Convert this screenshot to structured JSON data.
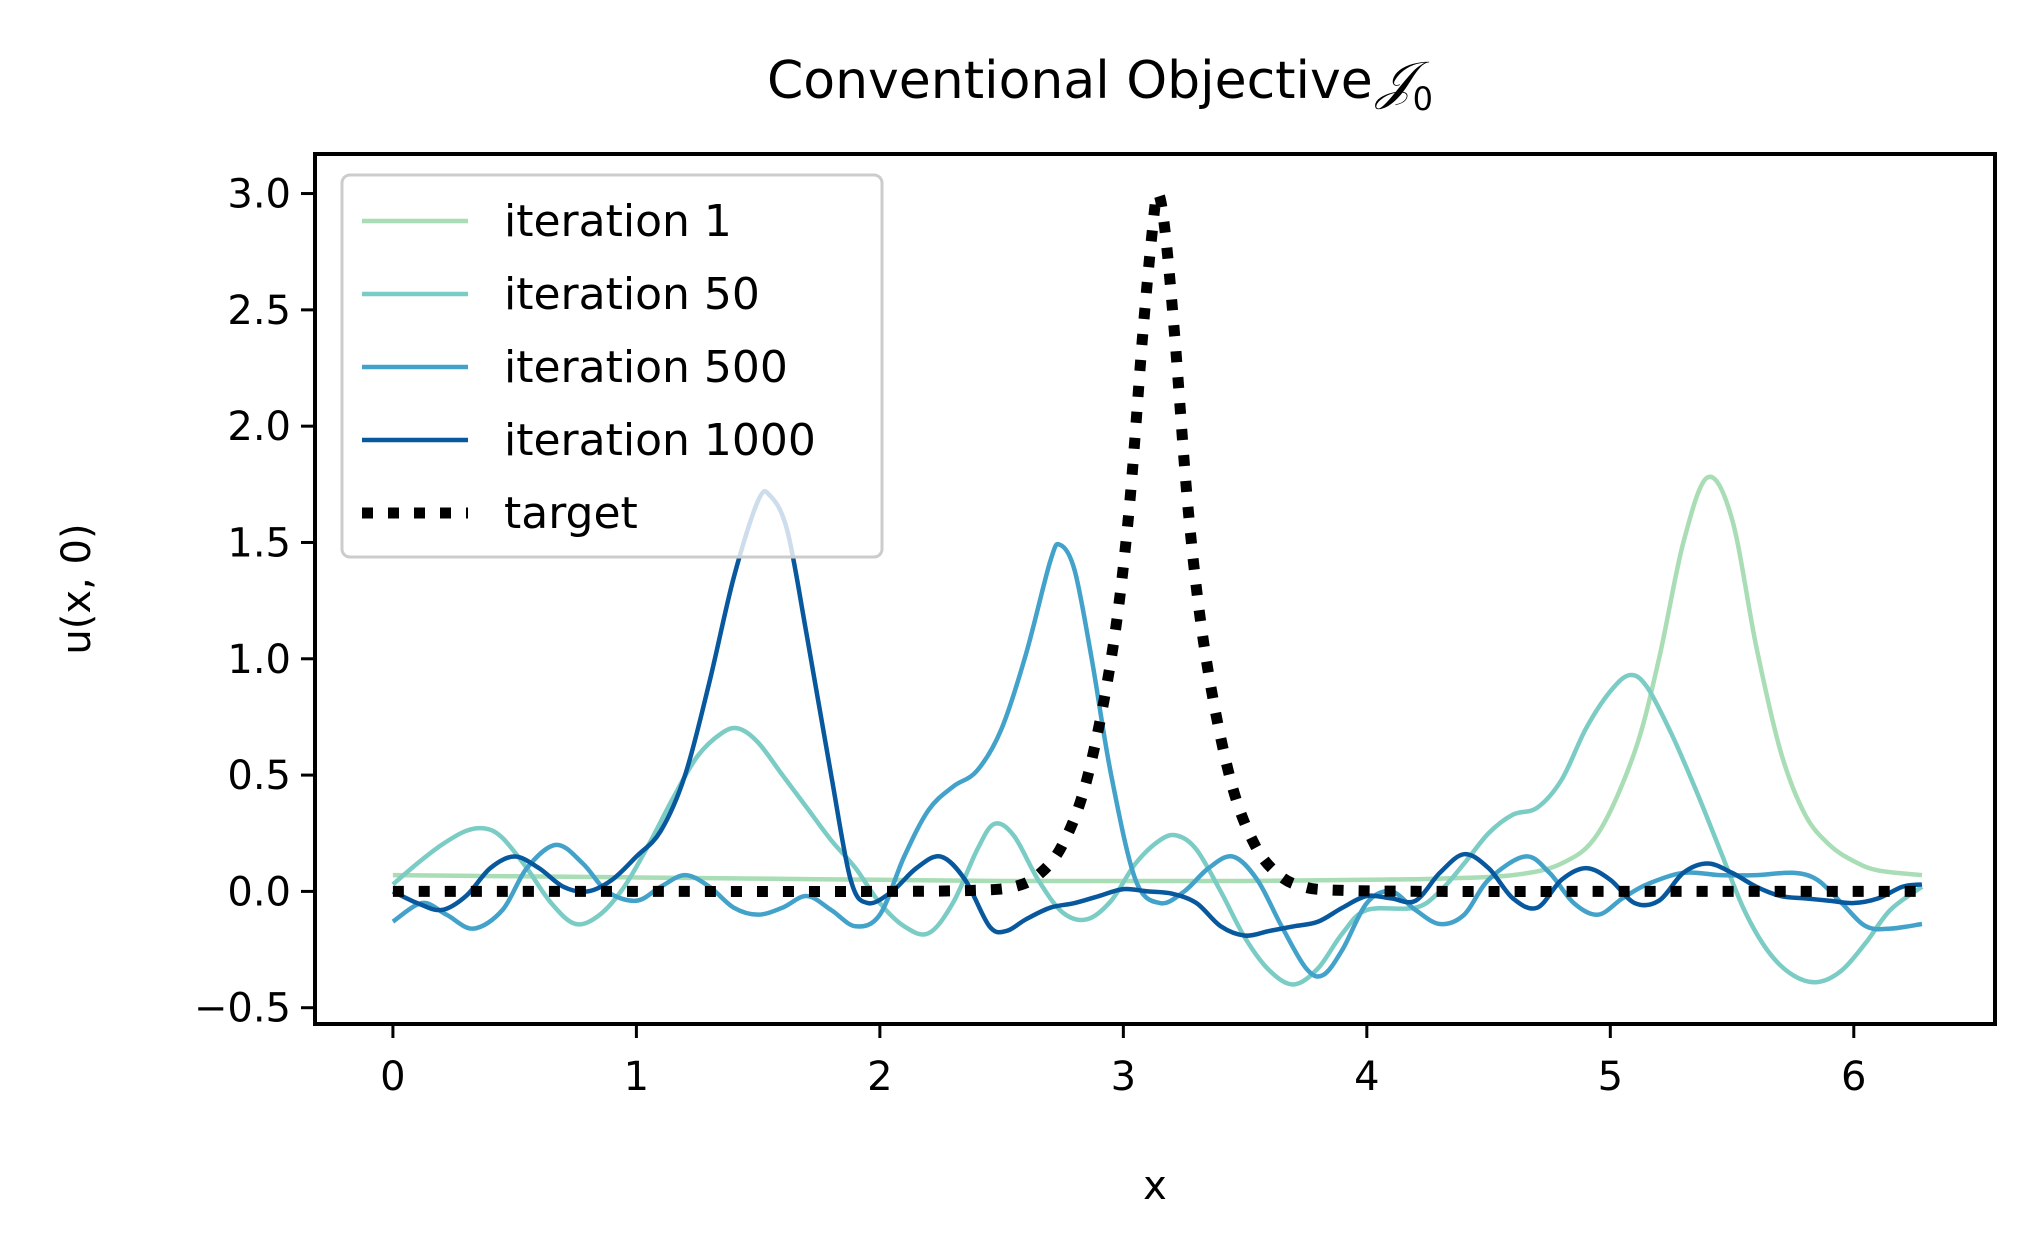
{
  "chart_data": {
    "type": "line",
    "title": "Conventional Objective",
    "title_symbol": "𝒥",
    "title_subscript": "0",
    "xlabel": "x",
    "ylabel": "u(x, 0)",
    "xlim": [
      -0.32,
      6.58
    ],
    "ylim": [
      -0.57,
      3.17
    ],
    "xticks": [
      0,
      1,
      2,
      3,
      4,
      5,
      6
    ],
    "xtick_labels": [
      "0",
      "1",
      "2",
      "3",
      "4",
      "5",
      "6"
    ],
    "yticks": [
      -0.5,
      0.0,
      0.5,
      1.0,
      1.5,
      2.0,
      2.5,
      3.0
    ],
    "ytick_labels": [
      "−0.5",
      "0.0",
      "0.5",
      "1.0",
      "1.5",
      "2.0",
      "2.5",
      "3.0"
    ],
    "grid": false,
    "legend_position": "top-left",
    "series": [
      {
        "name": "iteration 1",
        "color": "#a8ddb5",
        "style": "solid",
        "points": [
          [
            0,
            0.07
          ],
          [
            0.5,
            0.065
          ],
          [
            1.0,
            0.06
          ],
          [
            1.5,
            0.055
          ],
          [
            2.0,
            0.05
          ],
          [
            2.5,
            0.045
          ],
          [
            3.0,
            0.045
          ],
          [
            3.5,
            0.045
          ],
          [
            4.0,
            0.05
          ],
          [
            4.3,
            0.055
          ],
          [
            4.6,
            0.07
          ],
          [
            4.8,
            0.12
          ],
          [
            4.95,
            0.25
          ],
          [
            5.1,
            0.6
          ],
          [
            5.2,
            1.0
          ],
          [
            5.3,
            1.5
          ],
          [
            5.4,
            1.78
          ],
          [
            5.5,
            1.6
          ],
          [
            5.6,
            1.05
          ],
          [
            5.7,
            0.6
          ],
          [
            5.8,
            0.33
          ],
          [
            5.9,
            0.2
          ],
          [
            6.0,
            0.13
          ],
          [
            6.1,
            0.09
          ],
          [
            6.28,
            0.07
          ]
        ]
      },
      {
        "name": "iteration 50",
        "color": "#7bccc4",
        "style": "solid",
        "points": [
          [
            0,
            0.03
          ],
          [
            0.1,
            0.12
          ],
          [
            0.2,
            0.2
          ],
          [
            0.3,
            0.26
          ],
          [
            0.38,
            0.27
          ],
          [
            0.45,
            0.23
          ],
          [
            0.55,
            0.1
          ],
          [
            0.65,
            -0.05
          ],
          [
            0.75,
            -0.14
          ],
          [
            0.85,
            -0.1
          ],
          [
            0.95,
            0.02
          ],
          [
            1.05,
            0.2
          ],
          [
            1.15,
            0.4
          ],
          [
            1.25,
            0.58
          ],
          [
            1.35,
            0.68
          ],
          [
            1.42,
            0.7
          ],
          [
            1.5,
            0.64
          ],
          [
            1.6,
            0.5
          ],
          [
            1.7,
            0.36
          ],
          [
            1.8,
            0.22
          ],
          [
            1.9,
            0.1
          ],
          [
            2.0,
            -0.05
          ],
          [
            2.1,
            -0.15
          ],
          [
            2.2,
            -0.18
          ],
          [
            2.3,
            -0.05
          ],
          [
            2.4,
            0.18
          ],
          [
            2.47,
            0.29
          ],
          [
            2.55,
            0.24
          ],
          [
            2.65,
            0.05
          ],
          [
            2.75,
            -0.09
          ],
          [
            2.85,
            -0.12
          ],
          [
            2.95,
            -0.04
          ],
          [
            3.05,
            0.12
          ],
          [
            3.15,
            0.22
          ],
          [
            3.22,
            0.24
          ],
          [
            3.3,
            0.18
          ],
          [
            3.4,
            0.0
          ],
          [
            3.5,
            -0.2
          ],
          [
            3.6,
            -0.34
          ],
          [
            3.7,
            -0.4
          ],
          [
            3.8,
            -0.33
          ],
          [
            3.9,
            -0.18
          ],
          [
            4.0,
            -0.08
          ],
          [
            4.2,
            -0.07
          ],
          [
            4.3,
            0.0
          ],
          [
            4.4,
            0.12
          ],
          [
            4.5,
            0.25
          ],
          [
            4.6,
            0.33
          ],
          [
            4.7,
            0.36
          ],
          [
            4.8,
            0.48
          ],
          [
            4.9,
            0.7
          ],
          [
            5.0,
            0.86
          ],
          [
            5.08,
            0.93
          ],
          [
            5.15,
            0.88
          ],
          [
            5.25,
            0.68
          ],
          [
            5.35,
            0.44
          ],
          [
            5.45,
            0.18
          ],
          [
            5.55,
            -0.08
          ],
          [
            5.65,
            -0.26
          ],
          [
            5.75,
            -0.36
          ],
          [
            5.85,
            -0.39
          ],
          [
            5.95,
            -0.34
          ],
          [
            6.05,
            -0.22
          ],
          [
            6.15,
            -0.08
          ],
          [
            6.28,
            0.02
          ]
        ]
      },
      {
        "name": "iteration 500",
        "color": "#43a2ca",
        "style": "solid",
        "points": [
          [
            0,
            -0.13
          ],
          [
            0.12,
            -0.05
          ],
          [
            0.22,
            -0.1
          ],
          [
            0.33,
            -0.16
          ],
          [
            0.45,
            -0.08
          ],
          [
            0.55,
            0.1
          ],
          [
            0.67,
            0.2
          ],
          [
            0.78,
            0.12
          ],
          [
            0.88,
            0.0
          ],
          [
            1.0,
            -0.04
          ],
          [
            1.1,
            0.02
          ],
          [
            1.2,
            0.07
          ],
          [
            1.3,
            0.02
          ],
          [
            1.4,
            -0.07
          ],
          [
            1.5,
            -0.1
          ],
          [
            1.6,
            -0.07
          ],
          [
            1.7,
            -0.02
          ],
          [
            1.8,
            -0.08
          ],
          [
            1.9,
            -0.15
          ],
          [
            2.0,
            -0.1
          ],
          [
            2.1,
            0.15
          ],
          [
            2.2,
            0.35
          ],
          [
            2.3,
            0.45
          ],
          [
            2.4,
            0.52
          ],
          [
            2.5,
            0.7
          ],
          [
            2.6,
            1.02
          ],
          [
            2.7,
            1.42
          ],
          [
            2.74,
            1.49
          ],
          [
            2.8,
            1.38
          ],
          [
            2.87,
            1.0
          ],
          [
            2.95,
            0.5
          ],
          [
            3.05,
            0.05
          ],
          [
            3.15,
            -0.05
          ],
          [
            3.25,
            0.0
          ],
          [
            3.35,
            0.1
          ],
          [
            3.45,
            0.15
          ],
          [
            3.55,
            0.05
          ],
          [
            3.65,
            -0.15
          ],
          [
            3.75,
            -0.33
          ],
          [
            3.82,
            -0.36
          ],
          [
            3.9,
            -0.25
          ],
          [
            4.0,
            -0.05
          ],
          [
            4.1,
            0.0
          ],
          [
            4.2,
            -0.08
          ],
          [
            4.3,
            -0.14
          ],
          [
            4.4,
            -0.1
          ],
          [
            4.5,
            0.05
          ],
          [
            4.65,
            0.15
          ],
          [
            4.75,
            0.08
          ],
          [
            4.85,
            -0.05
          ],
          [
            4.95,
            -0.1
          ],
          [
            5.05,
            -0.03
          ],
          [
            5.15,
            0.03
          ],
          [
            5.3,
            0.08
          ],
          [
            5.45,
            0.07
          ],
          [
            5.6,
            0.07
          ],
          [
            5.75,
            0.08
          ],
          [
            5.85,
            0.05
          ],
          [
            5.95,
            -0.05
          ],
          [
            6.05,
            -0.15
          ],
          [
            6.15,
            -0.16
          ],
          [
            6.28,
            -0.14
          ]
        ]
      },
      {
        "name": "iteration 1000",
        "color": "#08589e",
        "style": "solid",
        "points": [
          [
            0,
            0.0
          ],
          [
            0.1,
            -0.05
          ],
          [
            0.2,
            -0.08
          ],
          [
            0.3,
            -0.02
          ],
          [
            0.4,
            0.1
          ],
          [
            0.5,
            0.15
          ],
          [
            0.6,
            0.1
          ],
          [
            0.7,
            0.02
          ],
          [
            0.8,
            0.0
          ],
          [
            0.9,
            0.05
          ],
          [
            1.0,
            0.15
          ],
          [
            1.1,
            0.26
          ],
          [
            1.2,
            0.5
          ],
          [
            1.3,
            0.9
          ],
          [
            1.4,
            1.35
          ],
          [
            1.5,
            1.68
          ],
          [
            1.55,
            1.7
          ],
          [
            1.62,
            1.55
          ],
          [
            1.7,
            1.1
          ],
          [
            1.8,
            0.5
          ],
          [
            1.88,
            0.05
          ],
          [
            1.95,
            -0.05
          ],
          [
            2.05,
            0.0
          ],
          [
            2.15,
            0.1
          ],
          [
            2.25,
            0.15
          ],
          [
            2.35,
            0.05
          ],
          [
            2.45,
            -0.15
          ],
          [
            2.52,
            -0.17
          ],
          [
            2.6,
            -0.12
          ],
          [
            2.7,
            -0.07
          ],
          [
            2.8,
            -0.05
          ],
          [
            2.9,
            -0.02
          ],
          [
            3.0,
            0.01
          ],
          [
            3.1,
            0.0
          ],
          [
            3.2,
            -0.01
          ],
          [
            3.3,
            -0.05
          ],
          [
            3.4,
            -0.15
          ],
          [
            3.5,
            -0.19
          ],
          [
            3.6,
            -0.17
          ],
          [
            3.7,
            -0.15
          ],
          [
            3.8,
            -0.13
          ],
          [
            3.9,
            -0.07
          ],
          [
            4.0,
            -0.02
          ],
          [
            4.1,
            -0.03
          ],
          [
            4.2,
            -0.04
          ],
          [
            4.3,
            0.08
          ],
          [
            4.4,
            0.16
          ],
          [
            4.5,
            0.1
          ],
          [
            4.6,
            -0.03
          ],
          [
            4.7,
            -0.07
          ],
          [
            4.8,
            0.05
          ],
          [
            4.9,
            0.1
          ],
          [
            5.0,
            0.05
          ],
          [
            5.1,
            -0.05
          ],
          [
            5.2,
            -0.04
          ],
          [
            5.3,
            0.08
          ],
          [
            5.4,
            0.12
          ],
          [
            5.5,
            0.08
          ],
          [
            5.6,
            0.02
          ],
          [
            5.7,
            -0.02
          ],
          [
            5.8,
            -0.03
          ],
          [
            5.9,
            -0.04
          ],
          [
            6.0,
            -0.05
          ],
          [
            6.1,
            -0.03
          ],
          [
            6.2,
            0.02
          ],
          [
            6.28,
            0.03
          ]
        ]
      },
      {
        "name": "target",
        "color": "#000000",
        "style": "dotted",
        "points": [
          [
            0,
            0.0
          ],
          [
            1.0,
            0.0
          ],
          [
            2.0,
            0.0
          ],
          [
            2.4,
            0.005
          ],
          [
            2.55,
            0.02
          ],
          [
            2.65,
            0.07
          ],
          [
            2.75,
            0.2
          ],
          [
            2.85,
            0.48
          ],
          [
            2.95,
            1.0
          ],
          [
            3.02,
            1.6
          ],
          [
            3.08,
            2.4
          ],
          [
            3.12,
            2.85
          ],
          [
            3.1416,
            3.0
          ],
          [
            3.17,
            2.85
          ],
          [
            3.21,
            2.4
          ],
          [
            3.27,
            1.6
          ],
          [
            3.34,
            1.0
          ],
          [
            3.44,
            0.48
          ],
          [
            3.54,
            0.2
          ],
          [
            3.64,
            0.07
          ],
          [
            3.74,
            0.02
          ],
          [
            3.88,
            0.005
          ],
          [
            4.3,
            0.0
          ],
          [
            5.0,
            0.0
          ],
          [
            6.28,
            0.0
          ]
        ]
      }
    ]
  }
}
